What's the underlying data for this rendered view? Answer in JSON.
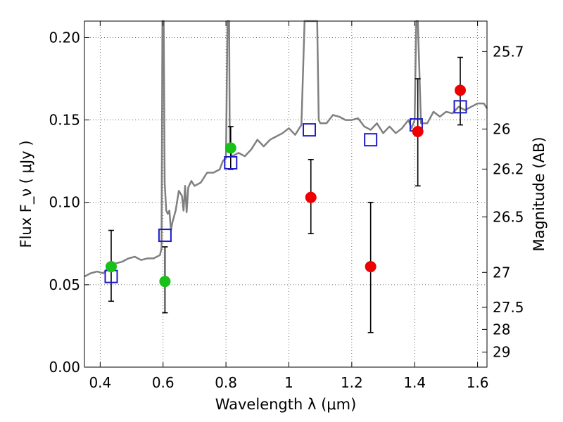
{
  "chart_data": {
    "type": "scatter",
    "xlabel": "Wavelength  λ (μm)",
    "ylabel": "Flux  F_ν  ( μJy )",
    "ylabel_right": "Magnitude (AB)",
    "xlim": [
      0.35,
      1.63
    ],
    "ylim": [
      0.0,
      0.21
    ],
    "grid": true,
    "x_ticks": [
      0.4,
      0.6,
      0.8,
      1.0,
      1.2,
      1.4,
      1.6
    ],
    "x_tick_labels": [
      "0.4",
      "0.6",
      "0.8",
      "1",
      "1.2",
      "1.4",
      "1.6"
    ],
    "y_ticks": [
      0.0,
      0.05,
      0.1,
      0.15,
      0.2
    ],
    "y_tick_labels": [
      "0.00",
      "0.05",
      "0.10",
      "0.15",
      "0.20"
    ],
    "right_ticks": [
      {
        "label": "25.7",
        "flux": 0.1915
      },
      {
        "label": "26",
        "flux": 0.1445
      },
      {
        "label": "26.2",
        "flux": 0.1202
      },
      {
        "label": "26.5",
        "flux": 0.0912
      },
      {
        "label": "27",
        "flux": 0.0575
      },
      {
        "label": "27.5",
        "flux": 0.0363
      },
      {
        "label": "28",
        "flux": 0.0229
      },
      {
        "label": "29",
        "flux": 0.0091
      }
    ],
    "series": [
      {
        "kind": "line",
        "color": "#808080",
        "x": [
          0.35,
          0.37,
          0.39,
          0.41,
          0.43,
          0.45,
          0.47,
          0.49,
          0.51,
          0.53,
          0.55,
          0.57,
          0.59,
          0.595,
          0.598,
          0.6,
          0.602,
          0.605,
          0.61,
          0.615,
          0.62,
          0.625,
          0.63,
          0.64,
          0.65,
          0.66,
          0.665,
          0.67,
          0.675,
          0.68,
          0.69,
          0.7,
          0.72,
          0.74,
          0.76,
          0.78,
          0.79,
          0.8,
          0.805,
          0.808,
          0.81,
          0.812,
          0.815,
          0.82,
          0.84,
          0.86,
          0.88,
          0.9,
          0.92,
          0.94,
          0.96,
          0.98,
          1.0,
          1.02,
          1.04,
          1.05,
          1.055,
          1.06,
          1.065,
          1.08,
          1.085,
          1.09,
          1.095,
          1.1,
          1.12,
          1.14,
          1.16,
          1.18,
          1.2,
          1.22,
          1.24,
          1.26,
          1.28,
          1.3,
          1.32,
          1.34,
          1.36,
          1.38,
          1.39,
          1.4,
          1.405,
          1.41,
          1.42,
          1.44,
          1.46,
          1.48,
          1.5,
          1.52,
          1.54,
          1.56,
          1.58,
          1.6,
          1.62,
          1.63
        ],
        "y": [
          0.055,
          0.057,
          0.058,
          0.057,
          0.061,
          0.063,
          0.064,
          0.066,
          0.067,
          0.065,
          0.066,
          0.066,
          0.068,
          0.072,
          0.21,
          0.21,
          0.21,
          0.112,
          0.095,
          0.093,
          0.095,
          0.083,
          0.088,
          0.095,
          0.107,
          0.104,
          0.095,
          0.11,
          0.094,
          0.109,
          0.113,
          0.11,
          0.112,
          0.118,
          0.118,
          0.12,
          0.125,
          0.127,
          0.21,
          0.21,
          0.21,
          0.134,
          0.13,
          0.128,
          0.13,
          0.128,
          0.132,
          0.138,
          0.134,
          0.138,
          0.14,
          0.142,
          0.145,
          0.141,
          0.147,
          0.21,
          0.21,
          0.21,
          0.21,
          0.21,
          0.21,
          0.21,
          0.15,
          0.148,
          0.148,
          0.153,
          0.152,
          0.15,
          0.15,
          0.151,
          0.146,
          0.144,
          0.148,
          0.142,
          0.146,
          0.142,
          0.145,
          0.15,
          0.145,
          0.15,
          0.21,
          0.21,
          0.148,
          0.148,
          0.155,
          0.152,
          0.155,
          0.154,
          0.158,
          0.156,
          0.158,
          0.16,
          0.16,
          0.157
        ]
      },
      {
        "kind": "open-square",
        "color": "#1b1bcc",
        "x": [
          0.435,
          0.606,
          0.815,
          1.065,
          1.26,
          1.405,
          1.545
        ],
        "y": [
          0.055,
          0.08,
          0.124,
          0.144,
          0.138,
          0.147,
          0.158
        ]
      },
      {
        "kind": "filled-circle",
        "color": "#18c018",
        "x": [
          0.435,
          0.606,
          0.815
        ],
        "y": [
          0.061,
          0.052,
          0.133
        ],
        "err_low": [
          0.04,
          0.033,
          0.12
        ],
        "err_high": [
          0.083,
          0.073,
          0.146
        ]
      },
      {
        "kind": "filled-circle",
        "color": "#ee0000",
        "x": [
          1.07,
          1.26,
          1.41,
          1.545
        ],
        "y": [
          0.103,
          0.061,
          0.143,
          0.168
        ],
        "err_low": [
          0.081,
          0.021,
          0.11,
          0.147
        ],
        "err_high": [
          0.126,
          0.1,
          0.175,
          0.188
        ]
      }
    ]
  }
}
